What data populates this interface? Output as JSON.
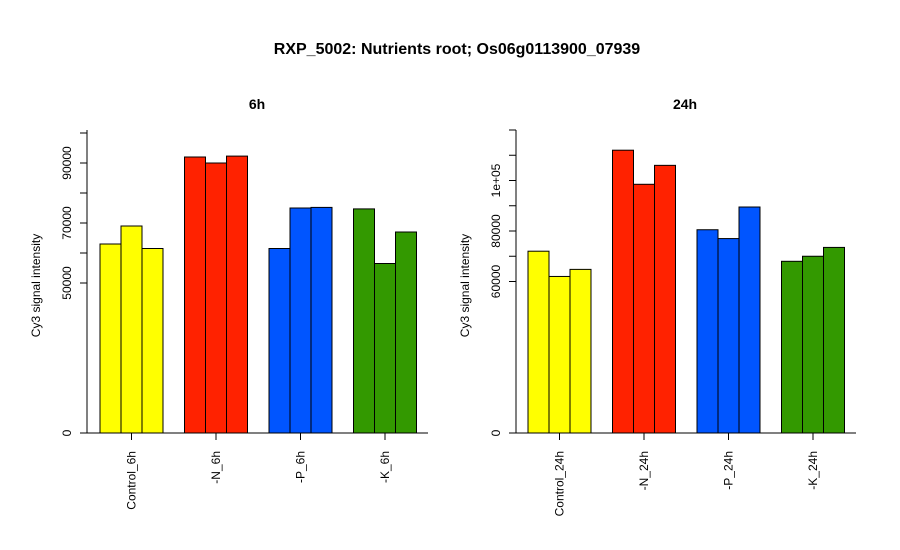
{
  "title": "RXP_5002: Nutrients root; Os06g0113900_07939",
  "colors": {
    "control": "#ffff00",
    "minus_n": "#ff2200",
    "minus_p": "#0055ff",
    "minus_k": "#339900"
  },
  "chart_data": [
    {
      "type": "bar",
      "title": "6h",
      "ylabel": "Cy3 signal intensity",
      "ylim": [
        0,
        101000
      ],
      "y_ticks": [
        0,
        50000,
        70000,
        90000
      ],
      "y_tick_labels": [
        "0",
        "50000",
        "70000",
        "90000"
      ],
      "y_minor_ticks": [
        60000,
        80000,
        100000
      ],
      "categories": [
        "Control_6h",
        "-N_6h",
        "-P_6h",
        "-K_6h"
      ],
      "category_colors": [
        "#ffff00",
        "#ff2200",
        "#0055ff",
        "#339900"
      ],
      "values": [
        [
          63000,
          69000,
          61500
        ],
        [
          92000,
          90000,
          92300
        ],
        [
          61500,
          75000,
          75200
        ],
        [
          74700,
          56500,
          67000
        ]
      ]
    },
    {
      "type": "bar",
      "title": "24h",
      "ylabel": "Cy3 signal intensity",
      "ylim": [
        0,
        120000
      ],
      "y_ticks": [
        0,
        60000,
        80000,
        100000
      ],
      "y_tick_labels": [
        "0",
        "60000",
        "80000",
        "1e+05"
      ],
      "y_minor_ticks": [
        70000,
        90000,
        110000,
        120000
      ],
      "categories": [
        "Control_24h",
        "-N_24h",
        "-P_24h",
        "-K_24h"
      ],
      "category_colors": [
        "#ffff00",
        "#ff2200",
        "#0055ff",
        "#339900"
      ],
      "values": [
        [
          72000,
          62000,
          64800
        ],
        [
          112000,
          98500,
          106000
        ],
        [
          80500,
          77000,
          89500
        ],
        [
          68000,
          70000,
          73500
        ]
      ]
    }
  ]
}
